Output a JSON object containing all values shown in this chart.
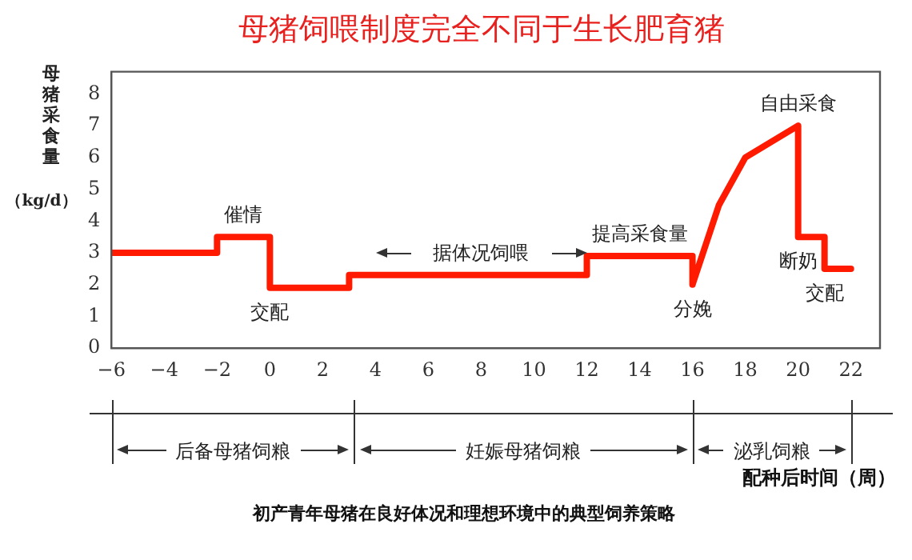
{
  "chart_data": {
    "type": "line",
    "title": "母猪饲喂制度完全不同于生长肥育猪",
    "ylabel": "母猪采食量（kg/d）",
    "xlabel": "配种后时间（周）",
    "x": [
      -6,
      -2,
      -2,
      0,
      0,
      3,
      3,
      12,
      12,
      16,
      16,
      17,
      18,
      20,
      20,
      21,
      21,
      22
    ],
    "series": [
      {
        "color": "#ff1a00",
        "values": [
          3,
          3,
          3.5,
          3.5,
          1.9,
          1.9,
          2.3,
          2.3,
          2.9,
          2.9,
          2.0,
          4.5,
          6.0,
          7.0,
          3.5,
          3.5,
          2.5,
          2.5
        ]
      }
    ],
    "xlim": [
      -6,
      23.1
    ],
    "xticks": [
      -6,
      -4,
      -2,
      0,
      2,
      4,
      6,
      8,
      10,
      12,
      14,
      16,
      18,
      20,
      22
    ],
    "ylim": [
      0,
      8.7
    ],
    "yticks": [
      0,
      1,
      2,
      3,
      4,
      5,
      6,
      7,
      8
    ],
    "grid": false,
    "legend": false,
    "marker": "none",
    "line_style": "solid",
    "annotations": [
      {
        "text": "催情",
        "x": -1,
        "y": 3.5
      },
      {
        "text": "交配",
        "x": 0,
        "y": 1.9
      },
      {
        "text": "据体况饲喂",
        "x": 8,
        "y": 2.3
      },
      {
        "text": "提高采食量",
        "x": 14,
        "y": 2.9
      },
      {
        "text": "分娩",
        "x": 16,
        "y": 2.0
      },
      {
        "text": "自由采食",
        "x": 20,
        "y": 7.0
      },
      {
        "text": "断奶",
        "x": 20,
        "y": 3.5
      },
      {
        "text": "交配",
        "x": 21,
        "y": 2.5
      },
      "后备母猪饲粮",
      "妊娠母猪饲粮",
      "泌乳饲粮",
      "初产青年母猪在良好体况和理想环境中的典型饲养策略"
    ]
  }
}
